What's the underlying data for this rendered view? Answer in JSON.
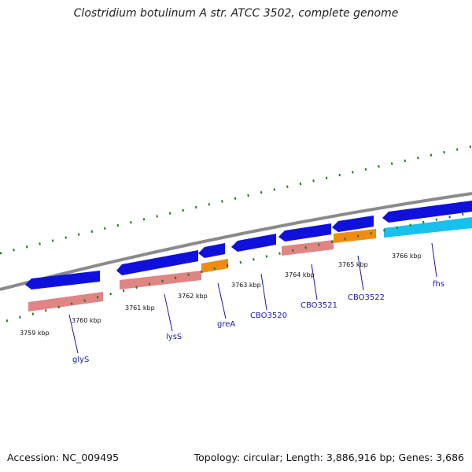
{
  "title": "Clostridium botulinum A str. ATCC 3502, complete genome",
  "accession": "Accession: NC_009495",
  "topology": "Topology: circular; Length: 3,886,916 bp; Genes: 3,686",
  "colors": {
    "backbone": "#8a8a8a",
    "tick": "#1e7a1e",
    "forward_cds": "#1010dd",
    "rna": "#d87a7a",
    "orange_feature": "#f08c10",
    "cyan_feature": "#18c0ee",
    "label": "#1a1aa8"
  },
  "position_labels": [
    "3759 kbp",
    "3760 kbp",
    "3761 kbp",
    "3762 kbp",
    "3763 kbp",
    "3764 kbp",
    "3765 kbp",
    "3766 kbp"
  ],
  "genes": [
    {
      "name": "glyS"
    },
    {
      "name": "lysS"
    },
    {
      "name": "greA"
    },
    {
      "name": "CBO3520"
    },
    {
      "name": "CBO3521"
    },
    {
      "name": "CBO3522"
    },
    {
      "name": "fhs"
    }
  ]
}
